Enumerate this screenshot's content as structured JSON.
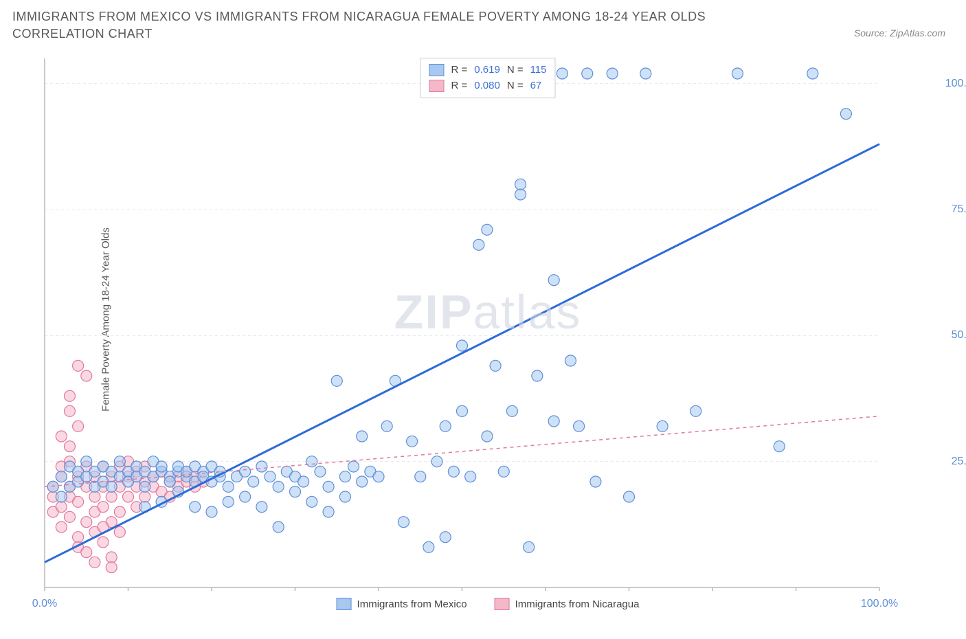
{
  "title": "IMMIGRANTS FROM MEXICO VS IMMIGRANTS FROM NICARAGUA FEMALE POVERTY AMONG 18-24 YEAR OLDS CORRELATION CHART",
  "source": "Source: ZipAtlas.com",
  "ylabel": "Female Poverty Among 18-24 Year Olds",
  "watermark_bold": "ZIP",
  "watermark_light": "atlas",
  "chart": {
    "type": "scatter",
    "xlim": [
      0,
      100
    ],
    "ylim": [
      0,
      105
    ],
    "xticks": [
      0,
      100
    ],
    "xtick_labels": [
      "0.0%",
      "100.0%"
    ],
    "yticks": [
      25,
      50,
      75,
      100
    ],
    "ytick_labels": [
      "25.0%",
      "50.0%",
      "75.0%",
      "100.0%"
    ],
    "background_color": "#ffffff",
    "grid_color": "#e8e8e8",
    "axis_color": "#b8b8b8",
    "marker_radius": 8,
    "marker_stroke_width": 1.2,
    "series": [
      {
        "name": "Immigrants from Mexico",
        "fill": "#a8c8f0",
        "stroke": "#5b8fd6",
        "fill_opacity": 0.55,
        "R": "0.619",
        "N": "115",
        "regression": {
          "x1": 0,
          "y1": 5,
          "x2": 100,
          "y2": 88,
          "stroke": "#2d6cd6",
          "width": 3,
          "dash": "none"
        },
        "points": [
          [
            1,
            20
          ],
          [
            2,
            22
          ],
          [
            2,
            18
          ],
          [
            3,
            24
          ],
          [
            3,
            20
          ],
          [
            4,
            21
          ],
          [
            4,
            23
          ],
          [
            5,
            22
          ],
          [
            5,
            25
          ],
          [
            6,
            20
          ],
          [
            6,
            23
          ],
          [
            7,
            24
          ],
          [
            7,
            21
          ],
          [
            8,
            23
          ],
          [
            8,
            20
          ],
          [
            9,
            22
          ],
          [
            9,
            25
          ],
          [
            10,
            23
          ],
          [
            10,
            21
          ],
          [
            11,
            24
          ],
          [
            11,
            22
          ],
          [
            12,
            23
          ],
          [
            12,
            20
          ],
          [
            13,
            25
          ],
          [
            13,
            22
          ],
          [
            14,
            23
          ],
          [
            14,
            24
          ],
          [
            15,
            22
          ],
          [
            15,
            21
          ],
          [
            16,
            23
          ],
          [
            16,
            24
          ],
          [
            17,
            22
          ],
          [
            17,
            23
          ],
          [
            18,
            21
          ],
          [
            18,
            24
          ],
          [
            19,
            23
          ],
          [
            19,
            22
          ],
          [
            20,
            24
          ],
          [
            20,
            21
          ],
          [
            21,
            22
          ],
          [
            21,
            23
          ],
          [
            22,
            20
          ],
          [
            23,
            22
          ],
          [
            24,
            23
          ],
          [
            25,
            21
          ],
          [
            26,
            24
          ],
          [
            27,
            22
          ],
          [
            28,
            20
          ],
          [
            29,
            23
          ],
          [
            30,
            22
          ],
          [
            31,
            21
          ],
          [
            32,
            25
          ],
          [
            33,
            23
          ],
          [
            34,
            20
          ],
          [
            35,
            41
          ],
          [
            36,
            22
          ],
          [
            37,
            24
          ],
          [
            38,
            21
          ],
          [
            38,
            30
          ],
          [
            39,
            23
          ],
          [
            40,
            22
          ],
          [
            41,
            32
          ],
          [
            42,
            41
          ],
          [
            43,
            13
          ],
          [
            44,
            29
          ],
          [
            45,
            22
          ],
          [
            46,
            8
          ],
          [
            47,
            25
          ],
          [
            48,
            32
          ],
          [
            49,
            23
          ],
          [
            50,
            48
          ],
          [
            51,
            22
          ],
          [
            52,
            68
          ],
          [
            53,
            71
          ],
          [
            53,
            30
          ],
          [
            54,
            44
          ],
          [
            55,
            23
          ],
          [
            56,
            35
          ],
          [
            57,
            78
          ],
          [
            57,
            80
          ],
          [
            58,
            8
          ],
          [
            58,
            102
          ],
          [
            59,
            42
          ],
          [
            60,
            102
          ],
          [
            61,
            33
          ],
          [
            61,
            61
          ],
          [
            62,
            102
          ],
          [
            63,
            45
          ],
          [
            64,
            32
          ],
          [
            65,
            102
          ],
          [
            66,
            21
          ],
          [
            68,
            102
          ],
          [
            70,
            18
          ],
          [
            72,
            102
          ],
          [
            74,
            32
          ],
          [
            78,
            35
          ],
          [
            83,
            102
          ],
          [
            88,
            28
          ],
          [
            92,
            102
          ],
          [
            96,
            94
          ],
          [
            48,
            10
          ],
          [
            50,
            35
          ],
          [
            34,
            15
          ],
          [
            36,
            18
          ],
          [
            28,
            12
          ],
          [
            30,
            19
          ],
          [
            32,
            17
          ],
          [
            26,
            16
          ],
          [
            24,
            18
          ],
          [
            22,
            17
          ],
          [
            20,
            15
          ],
          [
            18,
            16
          ],
          [
            16,
            19
          ],
          [
            14,
            17
          ],
          [
            12,
            16
          ]
        ]
      },
      {
        "name": "Immigrants from Nicaragua",
        "fill": "#f5b8c8",
        "stroke": "#e077a0",
        "fill_opacity": 0.55,
        "R": "0.080",
        "N": "67",
        "regression": {
          "x1": 0,
          "y1": 20,
          "x2": 100,
          "y2": 34,
          "stroke": "#e077a0",
          "width": 1.5,
          "dash": "5 5"
        },
        "points": [
          [
            1,
            18
          ],
          [
            1,
            20
          ],
          [
            1,
            15
          ],
          [
            2,
            22
          ],
          [
            2,
            16
          ],
          [
            2,
            24
          ],
          [
            2,
            12
          ],
          [
            3,
            20
          ],
          [
            3,
            18
          ],
          [
            3,
            25
          ],
          [
            3,
            14
          ],
          [
            3,
            35
          ],
          [
            4,
            22
          ],
          [
            4,
            17
          ],
          [
            4,
            44
          ],
          [
            4,
            10
          ],
          [
            5,
            20
          ],
          [
            5,
            24
          ],
          [
            5,
            13
          ],
          [
            5,
            42
          ],
          [
            6,
            18
          ],
          [
            6,
            22
          ],
          [
            6,
            11
          ],
          [
            6,
            15
          ],
          [
            7,
            20
          ],
          [
            7,
            24
          ],
          [
            7,
            16
          ],
          [
            7,
            9
          ],
          [
            8,
            22
          ],
          [
            8,
            18
          ],
          [
            8,
            13
          ],
          [
            8,
            6
          ],
          [
            9,
            20
          ],
          [
            9,
            24
          ],
          [
            9,
            15
          ],
          [
            9,
            11
          ],
          [
            10,
            22
          ],
          [
            10,
            18
          ],
          [
            10,
            25
          ],
          [
            11,
            20
          ],
          [
            11,
            16
          ],
          [
            11,
            23
          ],
          [
            12,
            21
          ],
          [
            12,
            18
          ],
          [
            12,
            24
          ],
          [
            13,
            20
          ],
          [
            13,
            22
          ],
          [
            14,
            19
          ],
          [
            14,
            23
          ],
          [
            15,
            21
          ],
          [
            15,
            18
          ],
          [
            16,
            22
          ],
          [
            16,
            20
          ],
          [
            17,
            21
          ],
          [
            17,
            23
          ],
          [
            18,
            20
          ],
          [
            18,
            22
          ],
          [
            19,
            21
          ],
          [
            2,
            30
          ],
          [
            3,
            28
          ],
          [
            4,
            8
          ],
          [
            5,
            7
          ],
          [
            6,
            5
          ],
          [
            7,
            12
          ],
          [
            8,
            4
          ],
          [
            4,
            32
          ],
          [
            3,
            38
          ]
        ]
      }
    ],
    "legend": {
      "series_label_prefix_R": "R = ",
      "series_label_prefix_N": "N = "
    },
    "bottom_legend_labels": [
      "Immigrants from Mexico",
      "Immigrants from Nicaragua"
    ]
  }
}
